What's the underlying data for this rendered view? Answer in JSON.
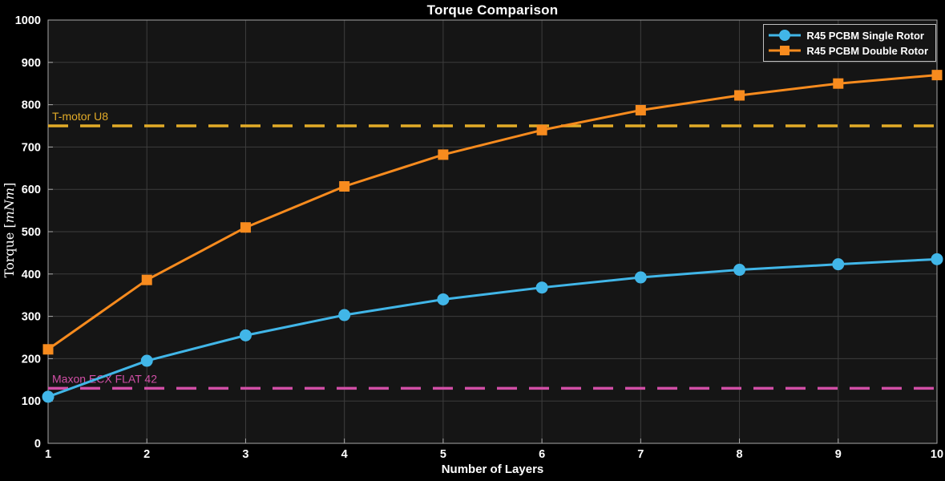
{
  "chart_data": {
    "type": "line",
    "title": "Torque Comparison",
    "xlabel": "Number of Layers",
    "ylabel": "Torque [mNm]",
    "ylabel_parts": [
      "Torque [",
      "mNm",
      "]"
    ],
    "x": [
      1,
      2,
      3,
      4,
      5,
      6,
      7,
      8,
      9,
      10
    ],
    "x_ticks": [
      1,
      2,
      3,
      4,
      5,
      6,
      7,
      8,
      9,
      10
    ],
    "y_ticks": [
      0,
      100,
      200,
      300,
      400,
      500,
      600,
      700,
      800,
      900,
      1000
    ],
    "xlim": [
      1,
      10
    ],
    "ylim": [
      0,
      1000
    ],
    "grid": true,
    "legend_position": "top-right",
    "series": [
      {
        "name": "R45 PCBM Single Rotor",
        "color": "#41b6e8",
        "marker": "circle",
        "values": [
          110,
          195,
          255,
          303,
          340,
          368,
          392,
          410,
          423,
          435
        ]
      },
      {
        "name": "R45 PCBM Double Rotor",
        "color": "#f78b1e",
        "marker": "square",
        "values": [
          222,
          386,
          510,
          607,
          682,
          740,
          787,
          822,
          850,
          870
        ]
      }
    ],
    "ref_lines": [
      {
        "label": "T-motor U8",
        "value": 750,
        "color": "#e2ab28"
      },
      {
        "label": "Maxon ECX FLAT 42",
        "value": 130,
        "color": "#d14fa6"
      }
    ]
  },
  "colors": {
    "figure_background": "#000000",
    "plot_background": "#151515",
    "grid": "#3d3d3d",
    "axis_box": "#a8a8a8",
    "tick_text": "#ffffff",
    "title_text": "#ffffff"
  }
}
